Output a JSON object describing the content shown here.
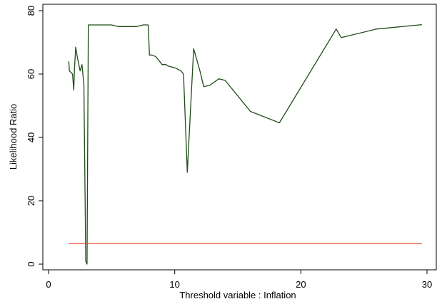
{
  "chart_data": {
    "type": "line",
    "title": "",
    "xlabel": "Threshold variable : Inflation",
    "ylabel": "Likelihood Ratio",
    "xlim": [
      0,
      30
    ],
    "ylim": [
      0,
      80
    ],
    "xticks": [
      0,
      10,
      20,
      30
    ],
    "yticks": [
      0,
      20,
      40,
      60,
      80
    ],
    "grid": false,
    "legend": "none",
    "series": [
      {
        "color": "#1e4d14",
        "x": [
          1.6,
          1.65,
          1.9,
          2.0,
          2.05,
          2.15,
          2.3,
          2.5,
          2.65,
          2.8,
          2.95,
          3.05,
          3.15,
          3.3,
          4.0,
          5.0,
          5.5,
          6.5,
          7.0,
          7.5,
          7.9,
          8.0,
          8.2,
          8.5,
          9.0,
          9.3,
          9.5,
          10.0,
          10.5,
          10.7,
          11.0,
          11.5,
          12.0,
          12.3,
          12.8,
          13.5,
          14.0,
          16.0,
          18.3,
          22.8,
          23.2,
          26.0,
          29.6
        ],
        "y": [
          64.0,
          61.0,
          60.0,
          55.0,
          61.0,
          68.5,
          65.0,
          61.0,
          63.0,
          56.5,
          1.0,
          0.0,
          75.5,
          75.5,
          75.5,
          75.5,
          75.0,
          75.0,
          75.0,
          75.5,
          75.5,
          66.0,
          66.0,
          65.5,
          63.0,
          63.0,
          62.5,
          62.0,
          61.0,
          60.0,
          29.0,
          68.0,
          61.0,
          56.0,
          56.5,
          58.5,
          58.0,
          48.2,
          44.6,
          74.2,
          71.5,
          74.2,
          75.6
        ]
      },
      {
        "color": "#e8472a",
        "x": [
          1.6,
          29.6
        ],
        "y": [
          6.5,
          6.5
        ]
      }
    ]
  }
}
